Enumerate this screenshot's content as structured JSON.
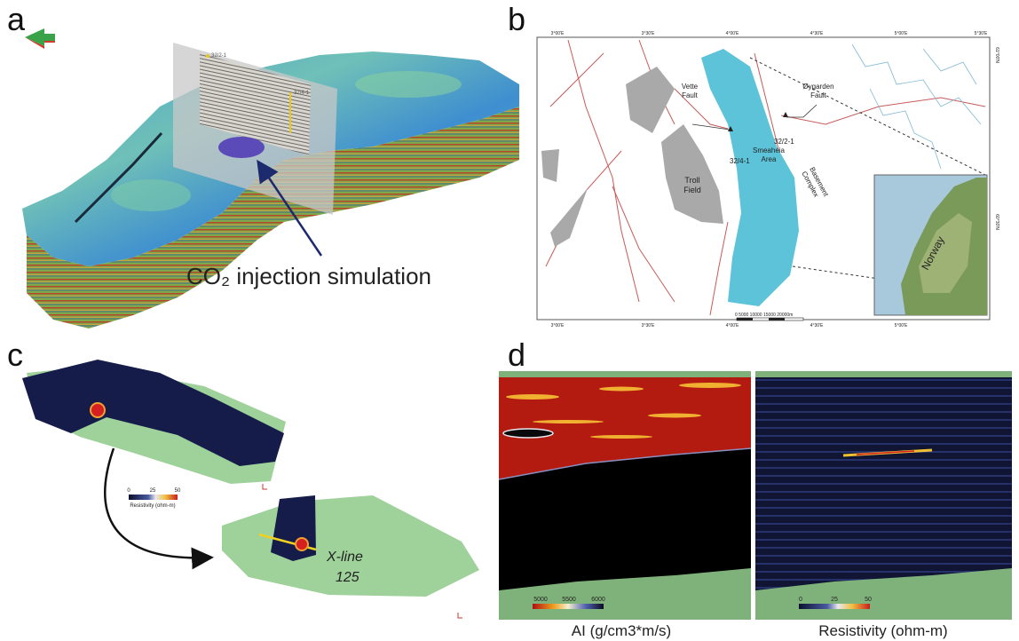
{
  "panels": {
    "a": {
      "label": "a",
      "wells": [
        "32/2-1",
        "32/4-1"
      ],
      "caption": "CO₂ injection simulation"
    },
    "b": {
      "label": "b",
      "top_longitudes": [
        "3°00'E",
        "3°30'E",
        "4°00'E",
        "4°30'E",
        "5°00'E",
        "5°30'E"
      ],
      "bottom_longitudes": [
        "3°00'E",
        "3°30'E",
        "4°00'E",
        "4°30'E",
        "5°00'E"
      ],
      "latitudes": [
        "61°00'N",
        "60°30'N"
      ],
      "vette_fault": [
        "Vette",
        "Fault"
      ],
      "oygarden_fault": [
        "Øygarden",
        "Fault"
      ],
      "smeaheia_area": [
        "Smeaheia",
        "Area"
      ],
      "troll_field": [
        "Troll",
        "Field"
      ],
      "basement_complex": [
        "Basement",
        "Complex"
      ],
      "wells": [
        "32/2-1",
        "32/4-1"
      ],
      "inset_label": "Norway",
      "scale_bar": "0   5000  10000 15000 20000m"
    },
    "c": {
      "label": "c",
      "colorbar_ticks": [
        0,
        25,
        50
      ],
      "colorbar_title": "Resistivity (ohm-m)",
      "x_line": [
        "X-line",
        "125"
      ]
    },
    "d": {
      "label": "d",
      "left": {
        "colorbar_ticks": [
          5000,
          5500,
          6000
        ],
        "title": "AI (g/cm3*m/s)"
      },
      "right": {
        "colorbar_ticks": [
          0,
          25,
          50
        ],
        "title": "Resistivity (ohm-m)"
      }
    }
  }
}
